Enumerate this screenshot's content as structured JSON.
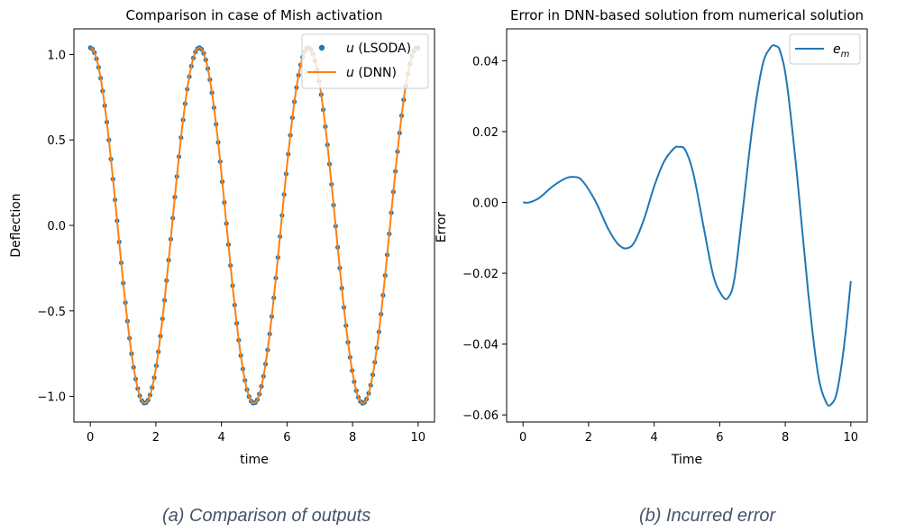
{
  "captions": {
    "a": "(a) Comparison of outputs",
    "b": "(b) Incurred error"
  },
  "colors": {
    "lsoda": "#1f77b4",
    "dnn": "#ff7f0e",
    "error": "#1f77b4",
    "caption": "#44546a"
  },
  "chart_data": [
    {
      "type": "line",
      "title": "Comparison in case of Mish activation",
      "xlabel": "time",
      "ylabel": "Deflection",
      "xlim": [
        -0.5,
        10.5
      ],
      "ylim": [
        -1.15,
        1.15
      ],
      "xticks": [
        0,
        2,
        4,
        6,
        8,
        10
      ],
      "yticks": [
        -1.0,
        -0.5,
        0.0,
        0.5,
        1.0
      ],
      "ytick_labels": [
        "−1.0",
        "−0.5",
        "0.0",
        "0.5",
        "1.0"
      ],
      "grid": false,
      "legend": "top-right",
      "function": "u(t) = 1.04 * cos(1.8895 * t), t in [0, 10]",
      "series": [
        {
          "name": "u (LSODA)",
          "style": "markers",
          "n_points": 160,
          "x_range": [
            0,
            10
          ]
        },
        {
          "name": "u (DNN)",
          "style": "line",
          "n_points": 500,
          "x_range": [
            0,
            10
          ]
        }
      ]
    },
    {
      "type": "line",
      "title": "Error in DNN-based solution from numerical solution",
      "xlabel": "Time",
      "ylabel": "Error",
      "xlim": [
        -0.5,
        10.5
      ],
      "ylim": [
        -0.062,
        0.049
      ],
      "xticks": [
        0,
        2,
        4,
        6,
        8,
        10
      ],
      "yticks": [
        -0.06,
        -0.04,
        -0.02,
        0.0,
        0.02,
        0.04
      ],
      "ytick_labels": [
        "−0.06",
        "−0.04",
        "−0.02",
        "0.00",
        "0.02",
        "0.04"
      ],
      "grid": false,
      "legend": "top-right",
      "series": [
        {
          "name": "e_m",
          "x": [
            0,
            0.2,
            0.5,
            0.9,
            1.3,
            1.55,
            1.8,
            2.2,
            2.6,
            2.9,
            3.15,
            3.4,
            3.7,
            4.0,
            4.3,
            4.6,
            4.75,
            4.95,
            5.2,
            5.5,
            5.8,
            6.05,
            6.25,
            6.45,
            6.7,
            7.0,
            7.3,
            7.55,
            7.7,
            7.85,
            8.05,
            8.35,
            8.7,
            9.0,
            9.25,
            9.4,
            9.55,
            9.7,
            9.85,
            10.0
          ],
          "y": [
            0.0,
            0.0,
            0.0013,
            0.0045,
            0.0068,
            0.0072,
            0.0062,
            0.0005,
            -0.0075,
            -0.0118,
            -0.013,
            -0.0112,
            -0.0045,
            0.0045,
            0.0115,
            0.0152,
            0.0157,
            0.0148,
            0.008,
            -0.0065,
            -0.0205,
            -0.026,
            -0.027,
            -0.0215,
            -0.0025,
            0.0215,
            0.0385,
            0.0437,
            0.0442,
            0.0425,
            0.0335,
            0.0085,
            -0.0255,
            -0.0485,
            -0.0565,
            -0.057,
            -0.0545,
            -0.047,
            -0.036,
            -0.0222
          ]
        }
      ]
    }
  ]
}
